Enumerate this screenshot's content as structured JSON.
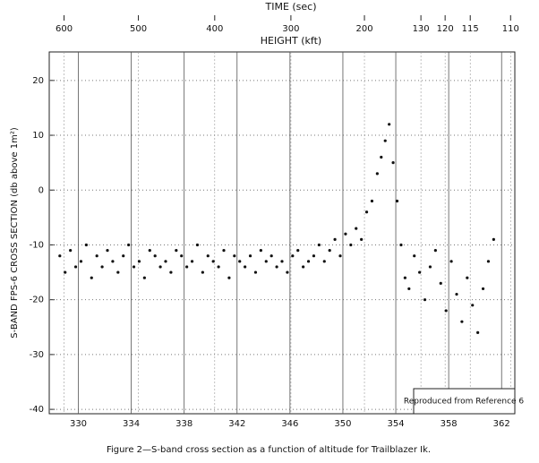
{
  "chart_data": {
    "type": "scatter",
    "title": "TIME (sec)",
    "x2_label": "HEIGHT (kft)",
    "y_label": "S-BAND FPS-6 CROSS SECTION (db above 1m²)",
    "caption": "Figure 2—S-band cross section as a function of altitude for Trailblazer Ik.",
    "annotation": "Reproduced from Reference 6",
    "color": "#111111",
    "grid": true,
    "xlim": [
      327.8,
      363
    ],
    "ylim": [
      -40.8,
      25.2
    ],
    "xticks": [
      330,
      334,
      338,
      342,
      346,
      350,
      354,
      358,
      362
    ],
    "yticks": [
      -40,
      -30,
      -20,
      -10,
      0,
      10,
      20
    ],
    "x2ticks": [
      {
        "value": 328.92,
        "label": "600"
      },
      {
        "value": 334.54,
        "label": "500"
      },
      {
        "value": 340.31,
        "label": "400"
      },
      {
        "value": 346.07,
        "label": "300"
      },
      {
        "value": 351.63,
        "label": "200"
      },
      {
        "value": 355.9,
        "label": "130"
      },
      {
        "value": 357.73,
        "label": "120"
      },
      {
        "value": 359.63,
        "label": "115"
      },
      {
        "value": 362.68,
        "label": "110"
      }
    ],
    "x": [
      328.6,
      329.0,
      329.4,
      329.8,
      330.2,
      330.6,
      331.0,
      331.4,
      331.8,
      332.2,
      332.6,
      333.0,
      333.4,
      333.8,
      334.2,
      334.6,
      335.0,
      335.4,
      335.8,
      336.2,
      336.6,
      337.0,
      337.4,
      337.8,
      338.2,
      338.6,
      339.0,
      339.4,
      339.8,
      340.2,
      340.6,
      341.0,
      341.4,
      341.8,
      342.2,
      342.6,
      343.0,
      343.4,
      343.8,
      344.2,
      344.6,
      345.0,
      345.4,
      345.8,
      346.2,
      346.6,
      347.0,
      347.4,
      347.8,
      348.2,
      348.6,
      349.0,
      349.4,
      349.8,
      350.2,
      350.6,
      351.0,
      351.4,
      351.8,
      352.2,
      352.6,
      352.9,
      353.2,
      353.5,
      353.8,
      354.1,
      354.4,
      354.7,
      355.0,
      355.4,
      355.8,
      356.2,
      356.6,
      357.0,
      357.4,
      357.8,
      358.2,
      358.6,
      359.0,
      359.4,
      359.8,
      360.2,
      360.6,
      361.0,
      361.4
    ],
    "values": [
      -12,
      -15,
      -11,
      -14,
      -13,
      -10,
      -16,
      -12,
      -14,
      -11,
      -13,
      -15,
      -12,
      -10,
      -14,
      -13,
      -16,
      -11,
      -12,
      -14,
      -13,
      -15,
      -11,
      -12,
      -14,
      -13,
      -10,
      -15,
      -12,
      -13,
      -14,
      -11,
      -16,
      -12,
      -13,
      -14,
      -12,
      -15,
      -11,
      -13,
      -12,
      -14,
      -13,
      -15,
      -12,
      -11,
      -14,
      -13,
      -12,
      -10,
      -13,
      -11,
      -9,
      -12,
      -8,
      -10,
      -7,
      -9,
      -4,
      -2,
      3,
      6,
      9,
      12,
      5,
      -2,
      -10,
      -16,
      -18,
      -12,
      -15,
      -20,
      -14,
      -11,
      -17,
      -22,
      -13,
      -19,
      -24,
      -16,
      -21,
      -26,
      -18,
      -13,
      -9
    ]
  }
}
